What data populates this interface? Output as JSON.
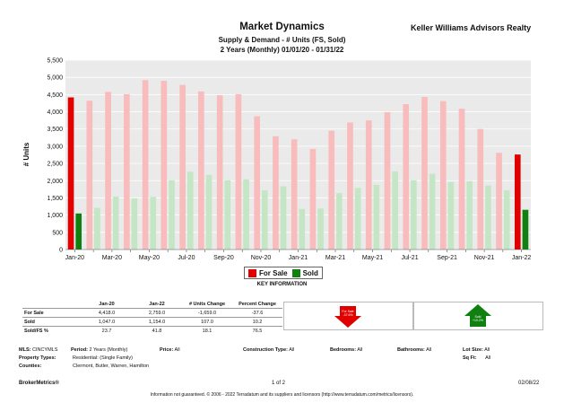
{
  "header": {
    "title": "Market Dynamics",
    "subtitle1": "Supply & Demand - # Units (FS, Sold)",
    "subtitle2": "2 Years (Monthly) 01/01/20 - 01/31/22",
    "company": "Keller Williams Advisors Realty"
  },
  "chart_data": {
    "type": "bar",
    "ylabel": "# Units",
    "ylim": [
      0,
      5500
    ],
    "yticks": [
      "0",
      "500",
      "1,000",
      "1,500",
      "2,000",
      "2,500",
      "3,000",
      "3,500",
      "4,000",
      "4,500",
      "5,000",
      "5,500"
    ],
    "grid": true,
    "legend_position": "bottom",
    "categories": [
      "Jan-20",
      "Feb-20",
      "Mar-20",
      "Apr-20",
      "May-20",
      "Jun-20",
      "Jul-20",
      "Aug-20",
      "Sep-20",
      "Oct-20",
      "Nov-20",
      "Dec-20",
      "Jan-21",
      "Feb-21",
      "Mar-21",
      "Apr-21",
      "May-21",
      "Jun-21",
      "Jul-21",
      "Aug-21",
      "Sep-21",
      "Oct-21",
      "Nov-21",
      "Dec-21",
      "Jan-22"
    ],
    "x_tick_labels": [
      "Jan-20",
      "",
      "Mar-20",
      "",
      "May-20",
      "",
      "Jul-20",
      "",
      "Sep-20",
      "",
      "Nov-20",
      "",
      "Jan-21",
      "",
      "Mar-21",
      "",
      "May-21",
      "",
      "Jul-21",
      "",
      "Sep-21",
      "",
      "Nov-21",
      "",
      "Jan-22"
    ],
    "highlighted_categories": [
      "Jan-20",
      "Jan-22"
    ],
    "series": [
      {
        "name": "For Sale",
        "color": "#e00000",
        "faded_color": "#f8bcbc",
        "values": [
          4418,
          4320,
          4580,
          4510,
          4920,
          4900,
          4780,
          4590,
          4480,
          4510,
          3870,
          3290,
          3200,
          2920,
          3450,
          3690,
          3750,
          3990,
          4220,
          4430,
          4310,
          4090,
          3500,
          2810,
          2759
        ]
      },
      {
        "name": "Sold",
        "color": "#108010",
        "faded_color": "#c5e6c5",
        "values": [
          1047,
          1210,
          1540,
          1490,
          1530,
          2010,
          2260,
          2170,
          2010,
          2040,
          1720,
          1840,
          1180,
          1190,
          1640,
          1790,
          1880,
          2270,
          2010,
          2200,
          1960,
          1990,
          1860,
          1720,
          1154
        ]
      }
    ]
  },
  "legend": {
    "for_sale": "For Sale",
    "sold": "Sold"
  },
  "key_info": "KEY INFORMATION",
  "stats": {
    "headers": [
      "",
      "Jan-20",
      "Jan-22",
      "# Units Change",
      "Percent Change"
    ],
    "rows": [
      [
        "For Sale",
        "4,418.0",
        "2,759.0",
        "-1,659.0",
        "-37.6"
      ],
      [
        "Sold",
        "1,047.0",
        "1,154.0",
        "107.0",
        "10.2"
      ],
      [
        "Sold/FS %",
        "23.7",
        "41.8",
        "18.1",
        "76.5"
      ]
    ]
  },
  "indicators": {
    "for_sale": {
      "text": "For Sale -37.6%",
      "color": "#e00000",
      "direction": "down"
    },
    "sold": {
      "text": "Sold +10.2%",
      "color": "#108010",
      "direction": "up"
    }
  },
  "criteria": {
    "mls_label": "MLS:",
    "mls_value": "CINCYMLS",
    "period_label": "Period:",
    "period_value": "2 Years (Monthly)",
    "price_label": "Price:",
    "price_value": "All",
    "construction_label": "Construction Type:",
    "construction_value": "All",
    "bedrooms_label": "Bedrooms:",
    "bedrooms_value": "All",
    "bathrooms_label": "Bathrooms:",
    "bathrooms_value": "All",
    "lotsize_label": "Lot Size:",
    "lotsize_value": "All",
    "proptype_label": "Property Types:",
    "proptype_value": "Residential: (Single Family)",
    "sqft_label": "Sq Ft:",
    "sqft_value": "All",
    "counties_label": "Counties:",
    "counties_value": "Clermont, Butler, Warren, Hamilton"
  },
  "footer": {
    "left": "BrokerMetrics®",
    "page": "1 of 2",
    "date": "02/08/22",
    "disclaimer": "Information not guaranteed.  © 2006 - 2022 Terradatum and its suppliers and licensors (http://www.terradatum.com/metrics/licensors)."
  }
}
